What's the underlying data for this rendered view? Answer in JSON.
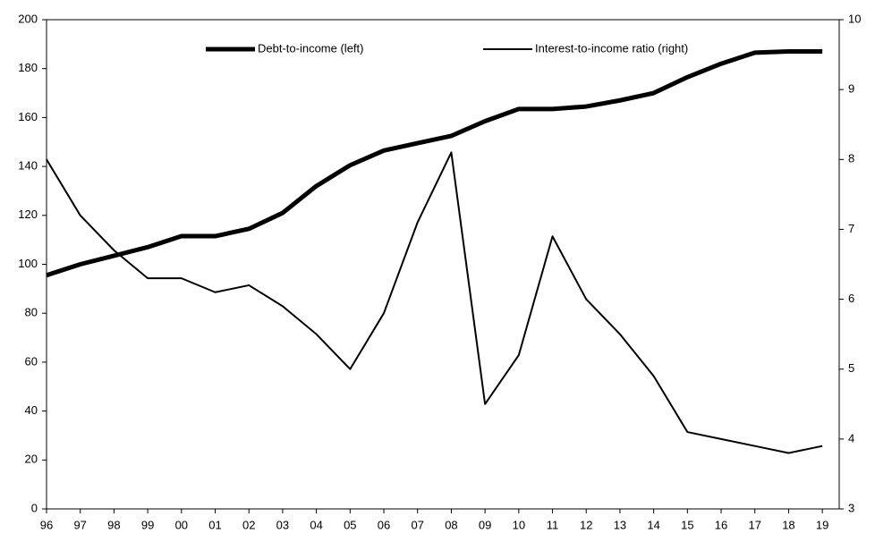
{
  "chart_data": {
    "type": "line",
    "categories": [
      "96",
      "97",
      "98",
      "99",
      "00",
      "01",
      "02",
      "03",
      "04",
      "05",
      "06",
      "07",
      "08",
      "09",
      "10",
      "11",
      "12",
      "13",
      "14",
      "15",
      "16",
      "17",
      "18",
      "19"
    ],
    "series": [
      {
        "name": "Debt-to-income (left)",
        "color": "#000000",
        "axis": "y",
        "values": [
          95.5,
          100,
          103.5,
          107,
          111.5,
          111.5,
          114.5,
          121,
          132,
          140.5,
          146.5,
          149.5,
          152.5,
          158.5,
          163.5,
          163.5,
          164.5,
          167,
          170,
          176.5,
          182,
          186.5,
          187,
          187
        ]
      },
      {
        "name": "Interest-to-income ratio (right)",
        "color": "#000000",
        "axis": "y2",
        "values": [
          8.0,
          7.2,
          6.7,
          6.3,
          6.3,
          6.1,
          6.2,
          5.9,
          5.5,
          5.0,
          5.8,
          7.1,
          8.1,
          4.5,
          5.2,
          6.9,
          6.0,
          5.5,
          4.9,
          4.1,
          4.0,
          3.9,
          3.8,
          3.9
        ]
      }
    ],
    "ylim": [
      0,
      200
    ],
    "yticks": [
      0,
      20,
      40,
      60,
      80,
      100,
      120,
      140,
      160,
      180,
      200
    ],
    "y2lim": [
      3,
      10
    ],
    "y2ticks": [
      3,
      4,
      5,
      6,
      7,
      8,
      9,
      10
    ],
    "legend": "top"
  }
}
